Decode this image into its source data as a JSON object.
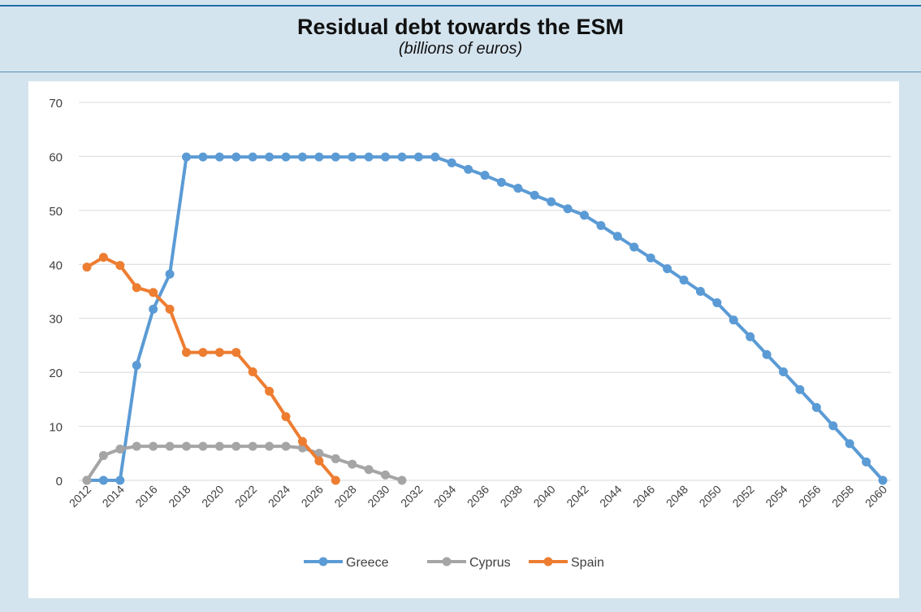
{
  "header": {
    "title": "Residual debt towards the ESM",
    "subtitle": "(billions of euros)"
  },
  "colors": {
    "greece": "#5b9bd5",
    "cyprus": "#a5a5a5",
    "spain": "#ed7d31",
    "grid": "#d9d9d9",
    "accent": "#1f6fa6"
  },
  "chart_data": {
    "type": "line",
    "title": "Residual debt towards the ESM",
    "subtitle": "(billions of euros)",
    "ylim": [
      0,
      70
    ],
    "y_ticks": [
      "0",
      "10",
      "20",
      "30",
      "40",
      "50",
      "60",
      "70"
    ],
    "xlim": [
      2012,
      2060
    ],
    "x_ticks": [
      "2012",
      "2014",
      "2016",
      "2018",
      "2020",
      "2022",
      "2024",
      "2026",
      "2028",
      "2030",
      "2032",
      "2034",
      "2036",
      "2038",
      "2040",
      "2042",
      "2044",
      "2046",
      "2048",
      "2050",
      "2052",
      "2054",
      "2056",
      "2058",
      "2060"
    ],
    "grid": true,
    "legend": "bottom-center",
    "series": [
      {
        "name": "Greece",
        "color": "#5b9bd5",
        "points": [
          [
            2012,
            0
          ],
          [
            2013,
            0
          ],
          [
            2014,
            0
          ],
          [
            2015,
            21.3
          ],
          [
            2016,
            31.7
          ],
          [
            2017,
            38.2
          ],
          [
            2018,
            59.9
          ],
          [
            2019,
            59.9
          ],
          [
            2020,
            59.9
          ],
          [
            2021,
            59.9
          ],
          [
            2022,
            59.9
          ],
          [
            2023,
            59.9
          ],
          [
            2024,
            59.9
          ],
          [
            2025,
            59.9
          ],
          [
            2026,
            59.9
          ],
          [
            2027,
            59.9
          ],
          [
            2028,
            59.9
          ],
          [
            2029,
            59.9
          ],
          [
            2030,
            59.9
          ],
          [
            2031,
            59.9
          ],
          [
            2032,
            59.9
          ],
          [
            2033,
            59.9
          ],
          [
            2034,
            58.8
          ],
          [
            2035,
            57.6
          ],
          [
            2036,
            56.5
          ],
          [
            2037,
            55.2
          ],
          [
            2038,
            54.1
          ],
          [
            2039,
            52.8
          ],
          [
            2040,
            51.6
          ],
          [
            2041,
            50.3
          ],
          [
            2042,
            49.1
          ],
          [
            2043,
            47.2
          ],
          [
            2044,
            45.2
          ],
          [
            2045,
            43.2
          ],
          [
            2046,
            41.2
          ],
          [
            2047,
            39.2
          ],
          [
            2048,
            37.1
          ],
          [
            2049,
            35.0
          ],
          [
            2050,
            32.9
          ],
          [
            2051,
            29.7
          ],
          [
            2052,
            26.6
          ],
          [
            2053,
            23.3
          ],
          [
            2054,
            20.1
          ],
          [
            2055,
            16.8
          ],
          [
            2056,
            13.5
          ],
          [
            2057,
            10.1
          ],
          [
            2058,
            6.8
          ],
          [
            2059,
            3.4
          ],
          [
            2060,
            0
          ]
        ]
      },
      {
        "name": "Cyprus",
        "color": "#a5a5a5",
        "points": [
          [
            2012,
            0
          ],
          [
            2013,
            4.6
          ],
          [
            2014,
            5.8
          ],
          [
            2015,
            6.3
          ],
          [
            2016,
            6.3
          ],
          [
            2017,
            6.3
          ],
          [
            2018,
            6.3
          ],
          [
            2019,
            6.3
          ],
          [
            2020,
            6.3
          ],
          [
            2021,
            6.3
          ],
          [
            2022,
            6.3
          ],
          [
            2023,
            6.3
          ],
          [
            2024,
            6.3
          ],
          [
            2025,
            6.0
          ],
          [
            2026,
            5.0
          ],
          [
            2027,
            4.0
          ],
          [
            2028,
            3.0
          ],
          [
            2029,
            2.0
          ],
          [
            2030,
            1.0
          ],
          [
            2031,
            0
          ]
        ]
      },
      {
        "name": "Spain",
        "color": "#ed7d31",
        "points": [
          [
            2012,
            39.5
          ],
          [
            2013,
            41.3
          ],
          [
            2014,
            39.8
          ],
          [
            2015,
            35.7
          ],
          [
            2016,
            34.8
          ],
          [
            2017,
            31.7
          ],
          [
            2018,
            23.7
          ],
          [
            2019,
            23.7
          ],
          [
            2020,
            23.7
          ],
          [
            2021,
            23.7
          ],
          [
            2022,
            20.1
          ],
          [
            2023,
            16.5
          ],
          [
            2024,
            11.8
          ],
          [
            2025,
            7.2
          ],
          [
            2026,
            3.6
          ],
          [
            2027,
            0
          ]
        ]
      }
    ]
  }
}
